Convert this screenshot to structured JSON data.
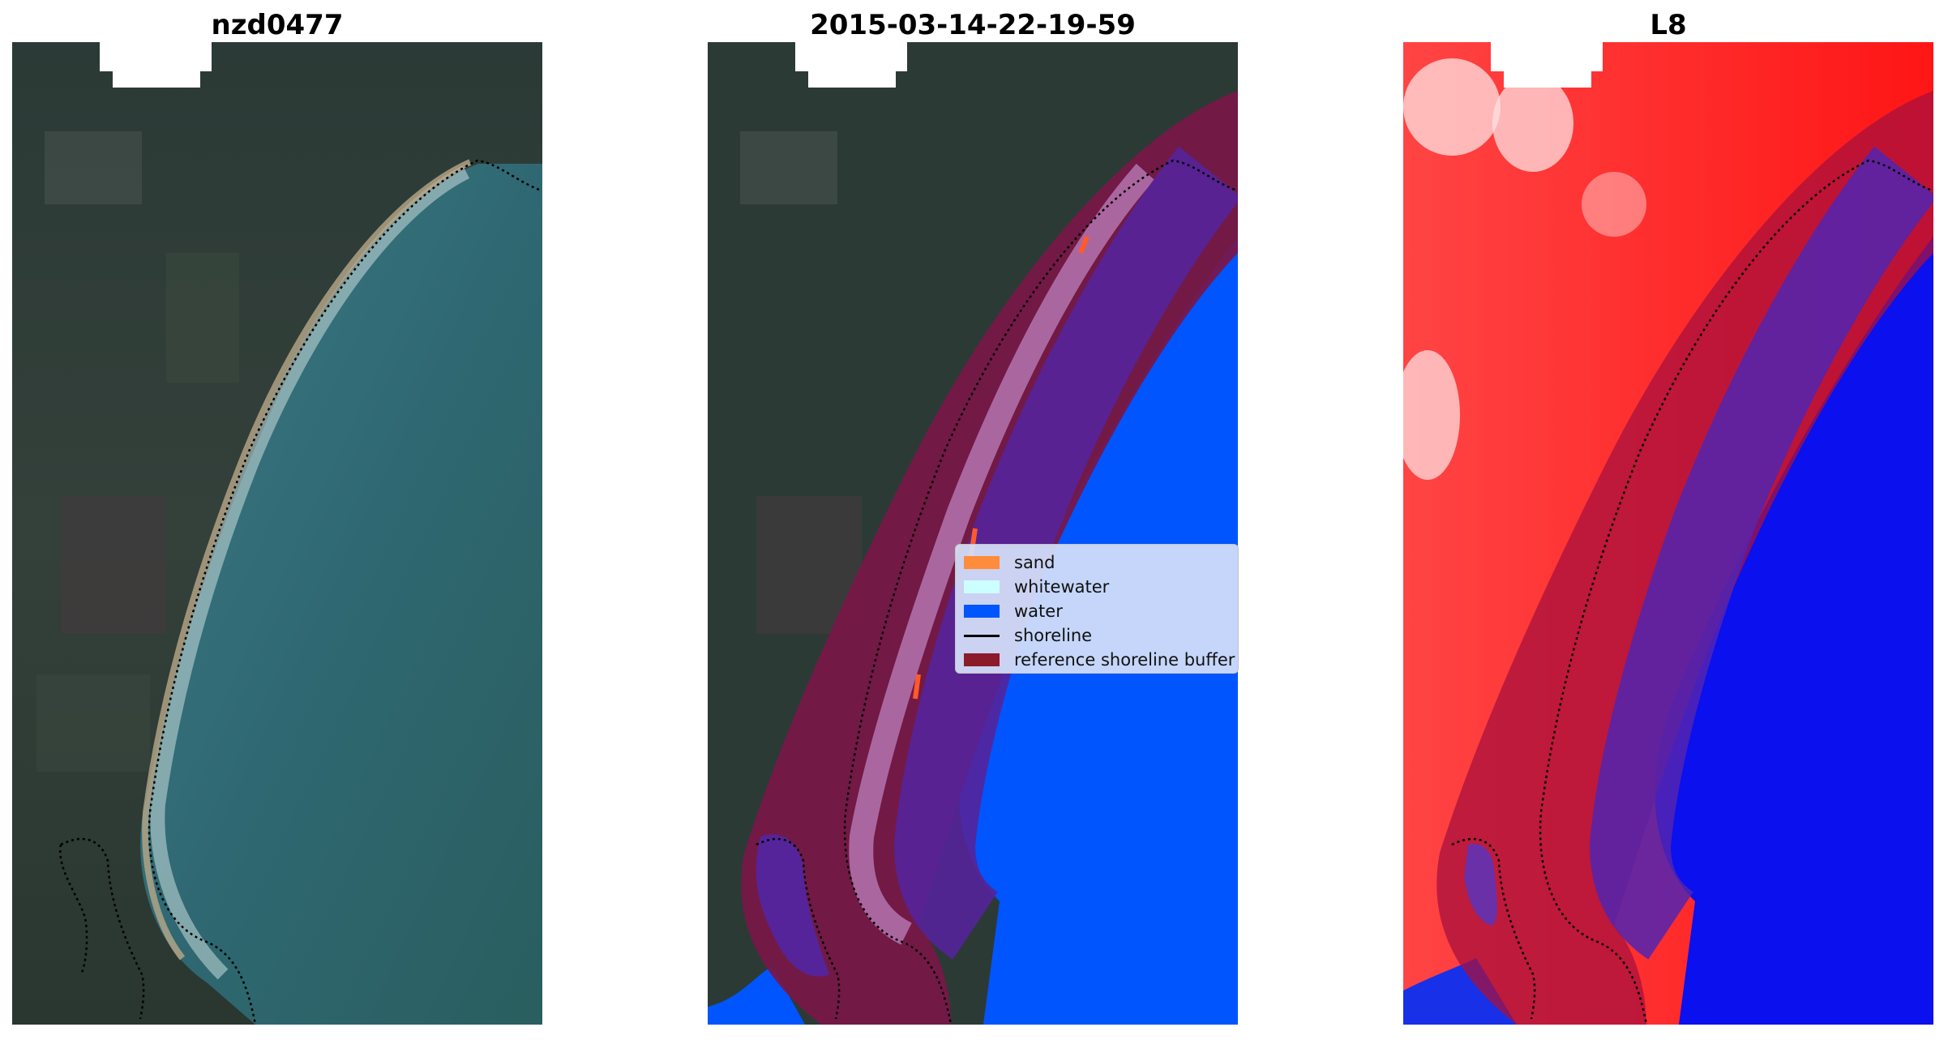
{
  "panels": [
    {
      "title": "nzd0477"
    },
    {
      "title": "2015-03-14-22-19-59"
    },
    {
      "title": "L8"
    }
  ],
  "legend": {
    "items": [
      {
        "label": "sand",
        "color": "#ff8c3c",
        "kind": "patch"
      },
      {
        "label": "whitewater",
        "color": "#ccffff",
        "kind": "patch"
      },
      {
        "label": "water",
        "color": "#0055ff",
        "kind": "patch"
      },
      {
        "label": "shoreline",
        "color": "#000000",
        "kind": "line"
      },
      {
        "label": "reference shoreline buffer",
        "color": "#8b1a2b",
        "kind": "patch"
      }
    ]
  },
  "colors": {
    "land_rgb": "#2c3a33",
    "sea_rgb": "#2f6a73",
    "classified_water": "#0055ff",
    "buffer": "#7a1746",
    "index_land": "#ff1a1a",
    "index_water": "#0a10ee"
  }
}
